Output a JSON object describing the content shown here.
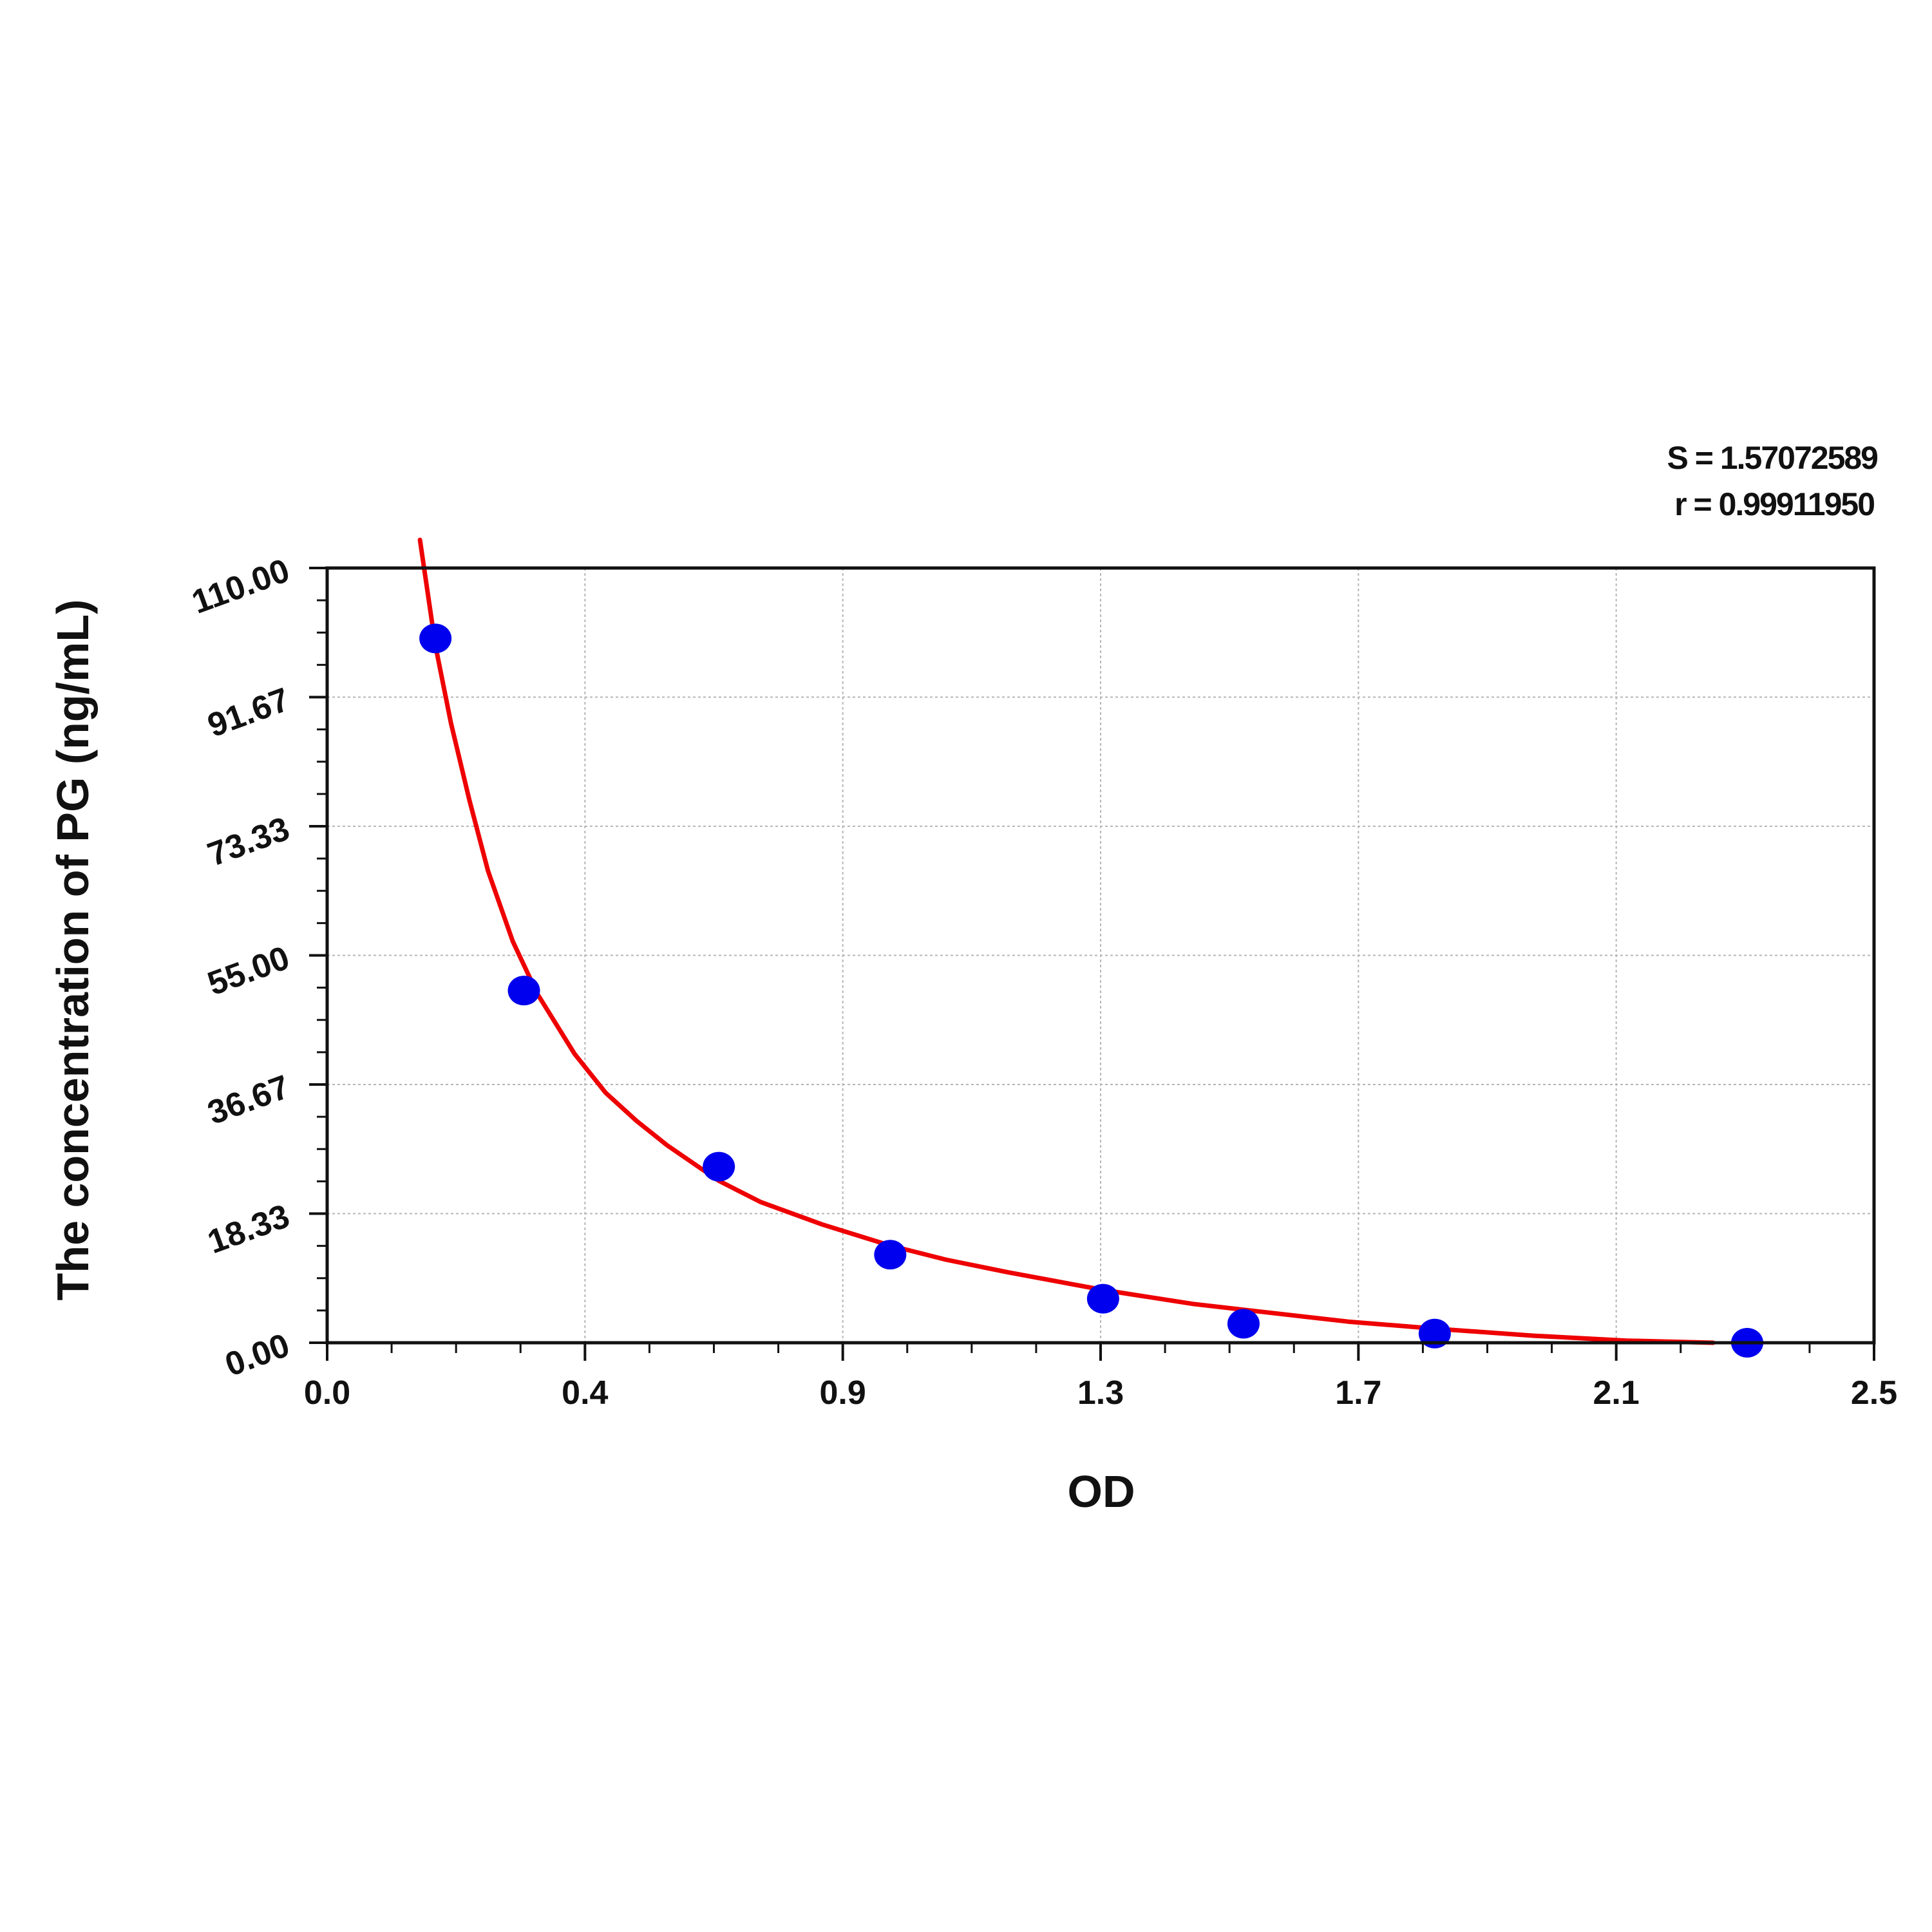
{
  "chart_data": {
    "type": "scatter",
    "xlabel": "OD",
    "ylabel": "The concentration of PG (ng/mL)",
    "xlim": [
      0.0,
      2.5
    ],
    "ylim": [
      0.0,
      110.0
    ],
    "x_ticks": [
      "0.0",
      "0.4",
      "0.9",
      "1.3",
      "1.7",
      "2.1",
      "2.5"
    ],
    "y_ticks": [
      "0.00",
      "18.33",
      "36.67",
      "55.00",
      "73.33",
      "91.67",
      "110.00"
    ],
    "grid": true,
    "stats": {
      "s_text": "S = 1.57072589",
      "r_text": "r = 0.99911950"
    },
    "series": [
      {
        "kind": "points",
        "color": "#0000ee",
        "points": [
          {
            "x": 0.175,
            "y": 100.0
          },
          {
            "x": 0.318,
            "y": 50.0
          },
          {
            "x": 0.633,
            "y": 25.0
          },
          {
            "x": 0.91,
            "y": 12.5
          },
          {
            "x": 1.254,
            "y": 6.25
          },
          {
            "x": 1.481,
            "y": 2.7
          },
          {
            "x": 1.79,
            "y": 1.3
          },
          {
            "x": 2.295,
            "y": 0.0
          }
        ]
      },
      {
        "kind": "fitted-curve",
        "color": "#ee0000",
        "points": [
          {
            "x": 0.15,
            "y": 114.0
          },
          {
            "x": 0.175,
            "y": 99.0
          },
          {
            "x": 0.2,
            "y": 88.0
          },
          {
            "x": 0.23,
            "y": 77.0
          },
          {
            "x": 0.26,
            "y": 67.0
          },
          {
            "x": 0.3,
            "y": 57.0
          },
          {
            "x": 0.34,
            "y": 49.5
          },
          {
            "x": 0.4,
            "y": 41.0
          },
          {
            "x": 0.45,
            "y": 35.5
          },
          {
            "x": 0.5,
            "y": 31.5
          },
          {
            "x": 0.55,
            "y": 28.0
          },
          {
            "x": 0.633,
            "y": 23.0
          },
          {
            "x": 0.7,
            "y": 20.0
          },
          {
            "x": 0.8,
            "y": 16.8
          },
          {
            "x": 0.91,
            "y": 13.8
          },
          {
            "x": 1.0,
            "y": 11.8
          },
          {
            "x": 1.1,
            "y": 10.0
          },
          {
            "x": 1.254,
            "y": 7.5
          },
          {
            "x": 1.4,
            "y": 5.5
          },
          {
            "x": 1.5,
            "y": 4.5
          },
          {
            "x": 1.65,
            "y": 3.0
          },
          {
            "x": 1.79,
            "y": 2.0
          },
          {
            "x": 1.95,
            "y": 1.0
          },
          {
            "x": 2.1,
            "y": 0.3
          },
          {
            "x": 2.24,
            "y": 0.0
          }
        ]
      }
    ]
  }
}
